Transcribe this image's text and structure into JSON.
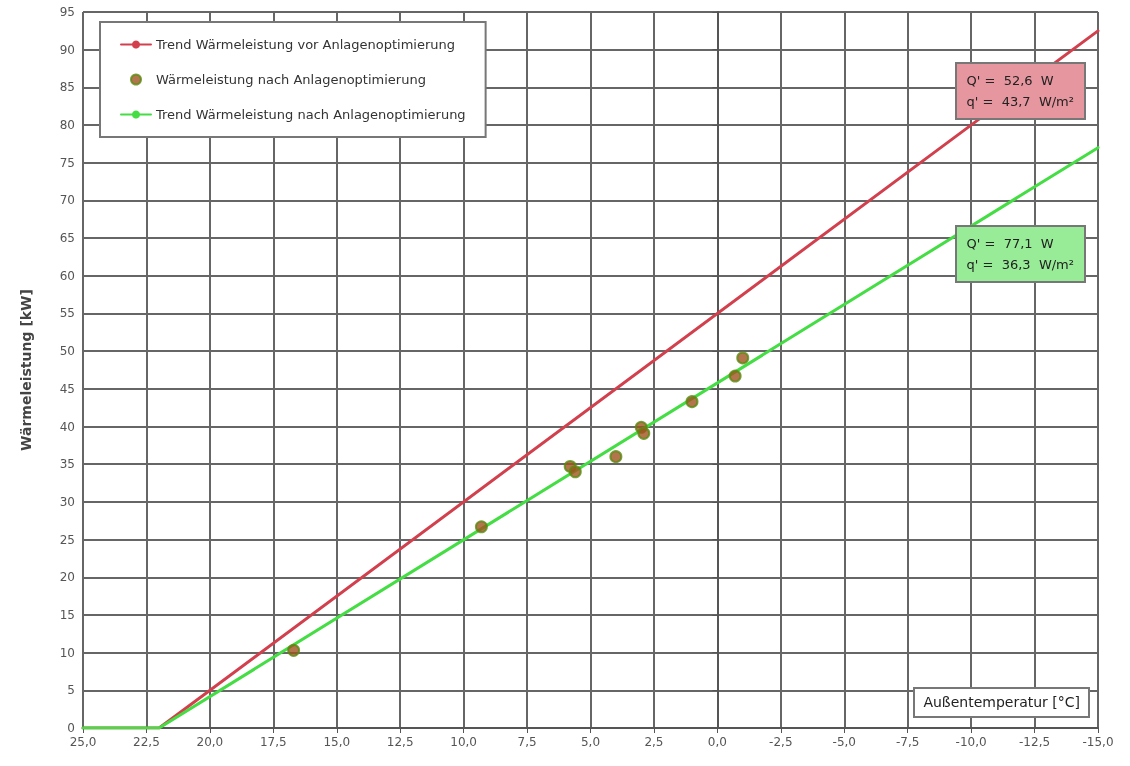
{
  "chart_data": {
    "type": "line",
    "ylabel": "Wärmeleistung [kW]",
    "xlabel": "Außentemperatur [°C]",
    "xlim": [
      25,
      -15
    ],
    "xticks": [
      {
        "value": 25,
        "label": "25,0"
      },
      {
        "value": 22.5,
        "label": "22,5"
      },
      {
        "value": 20,
        "label": "20,0"
      },
      {
        "value": 17.5,
        "label": "17,5"
      },
      {
        "value": 15,
        "label": "15,0"
      },
      {
        "value": 12.5,
        "label": "12,5"
      },
      {
        "value": 10,
        "label": "10,0"
      },
      {
        "value": 7.5,
        "label": "7,5"
      },
      {
        "value": 5,
        "label": "5,0"
      },
      {
        "value": 2.5,
        "label": "2,5"
      },
      {
        "value": 0,
        "label": "0,0"
      },
      {
        "value": -2.5,
        "label": "-2,5"
      },
      {
        "value": -5,
        "label": "-5,0"
      },
      {
        "value": -7.5,
        "label": "-7,5"
      },
      {
        "value": -10,
        "label": "-10,0"
      },
      {
        "value": -12.5,
        "label": "-12,5"
      },
      {
        "value": -15,
        "label": "-15,0"
      }
    ],
    "ylim": [
      0,
      95
    ],
    "yticks": [
      0,
      5,
      10,
      15,
      20,
      25,
      30,
      35,
      40,
      45,
      50,
      55,
      60,
      65,
      70,
      75,
      80,
      85,
      90,
      95
    ],
    "grid": true,
    "legend": "top left",
    "series": [
      {
        "name": "Trend Wärmeleistung vor Anlagenoptimierung",
        "marker": "none",
        "color": "#d2404e",
        "x": [
          25,
          22,
          -15
        ],
        "values": [
          0,
          0,
          92.5
        ]
      },
      {
        "name": "Wärmeleistung nach Anlagenoptimierung",
        "type": "scatter",
        "marker": "circle",
        "color": "#a0521e",
        "x": [
          16.7,
          9.3,
          5.8,
          5.6,
          4.0,
          3.0,
          2.9,
          1.0,
          -0.7,
          -1.0
        ],
        "values": [
          10.3,
          26.7,
          34.7,
          34.0,
          36.0,
          39.9,
          39.1,
          43.3,
          46.7,
          49.1
        ]
      },
      {
        "name": "Trend Wärmeleistung nach Anlagenoptimierung",
        "marker": "none",
        "color": "#44dd44",
        "x": [
          25,
          22,
          -15
        ],
        "values": [
          0,
          0,
          77
        ]
      }
    ],
    "annotations": [
      "Q' =  52,6  W\nq' =  43,7  W/m²",
      "Q' =  77,1  W\nq' =  36,3  W/m²"
    ]
  }
}
